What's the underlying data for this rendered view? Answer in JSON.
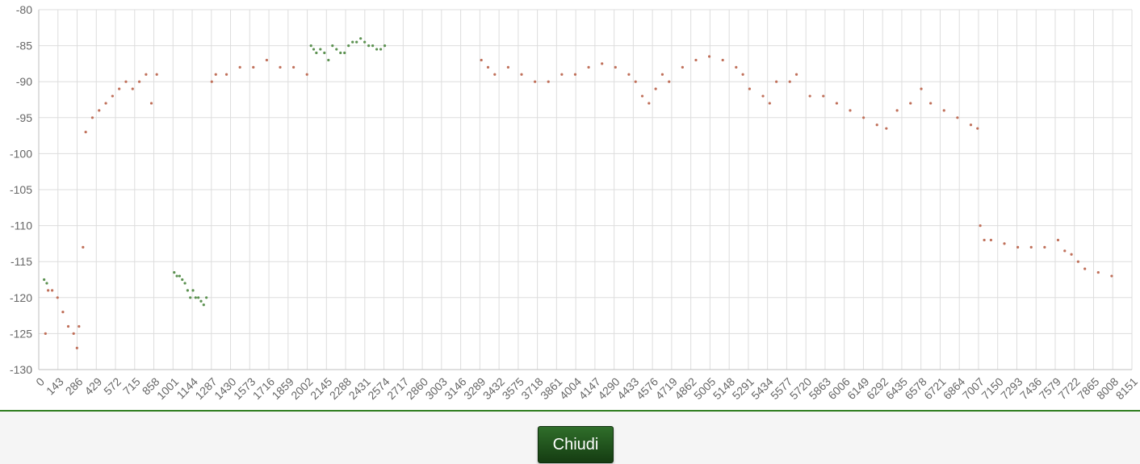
{
  "chart_data": {
    "type": "scatter",
    "title": "",
    "xlabel": "",
    "ylabel": "",
    "xlim": [
      0,
      8151
    ],
    "ylim": [
      -130,
      -80
    ],
    "y_ticks": [
      -80,
      -85,
      -90,
      -95,
      -100,
      -105,
      -110,
      -115,
      -120,
      -125,
      -130
    ],
    "x_ticks": [
      0,
      143,
      286,
      429,
      572,
      715,
      858,
      1001,
      1144,
      1287,
      1430,
      1573,
      1716,
      1859,
      2002,
      2145,
      2288,
      2431,
      2574,
      2717,
      2860,
      3003,
      3146,
      3289,
      3432,
      3575,
      3718,
      3861,
      4004,
      4147,
      4290,
      4433,
      4576,
      4719,
      4862,
      5005,
      5148,
      5291,
      5434,
      5577,
      5720,
      5863,
      6006,
      6149,
      6292,
      6435,
      6578,
      6721,
      6864,
      7007,
      7150,
      7293,
      7436,
      7579,
      7722,
      7865,
      8008,
      8151
    ],
    "grid": true,
    "legend": "none",
    "series": [
      {
        "color": "#c0705a",
        "x": [
          50,
          70,
          100,
          140,
          180,
          220,
          260,
          285,
          300,
          330,
          350,
          400,
          450,
          500,
          550,
          600,
          650,
          700,
          750,
          800,
          840,
          880,
          1290,
          1320,
          1400,
          1500,
          1600,
          1700,
          1800,
          1900,
          2000,
          3300,
          3350,
          3400,
          3500,
          3600,
          3700,
          3800,
          3900,
          4000,
          4100,
          4200,
          4300,
          4400,
          4450,
          4500,
          4550,
          4600,
          4650,
          4700,
          4800,
          4900,
          5000,
          5100,
          5200,
          5250,
          5300,
          5400,
          5450,
          5500,
          5600,
          5650,
          5750,
          5850,
          5950,
          6050,
          6150,
          6250,
          6320,
          6400,
          6500,
          6580,
          6650,
          6750,
          6850,
          6950,
          7000,
          7020,
          7050,
          7100,
          7200,
          7300,
          7400,
          7500,
          7600,
          7650,
          7700,
          7750,
          7800,
          7900,
          8000
        ],
        "y": [
          -125,
          -119,
          -119,
          -120,
          -122,
          -124,
          -125,
          -127,
          -124,
          -113,
          -97,
          -95,
          -94,
          -93,
          -92,
          -91,
          -90,
          -91,
          -90,
          -89,
          -93,
          -89,
          -90,
          -89,
          -89,
          -88,
          -88,
          -87,
          -88,
          -88,
          -89,
          -87,
          -88,
          -89,
          -88,
          -89,
          -90,
          -90,
          -89,
          -89,
          -88,
          -87.5,
          -88,
          -89,
          -90,
          -92,
          -93,
          -91,
          -89,
          -90,
          -88,
          -87,
          -86.5,
          -87,
          -88,
          -89,
          -91,
          -92,
          -93,
          -90,
          -90,
          -89,
          -92,
          -92,
          -93,
          -94,
          -95,
          -96,
          -96.5,
          -94,
          -93,
          -91,
          -93,
          -94,
          -95,
          -96,
          -96.5,
          -110,
          -112,
          -112,
          -112.5,
          -113,
          -113,
          -113,
          -112,
          -113.5,
          -114,
          -115,
          -116,
          -116.5,
          -117
        ]
      },
      {
        "color": "#5b9150",
        "x": [
          40,
          60,
          1010,
          1030,
          1050,
          1070,
          1090,
          1110,
          1130,
          1150,
          1170,
          1190,
          1210,
          1230,
          1250,
          2030,
          2050,
          2070,
          2100,
          2130,
          2160,
          2190,
          2220,
          2250,
          2280,
          2310,
          2340,
          2370,
          2400,
          2430,
          2460,
          2490,
          2520,
          2550,
          2580
        ],
        "y": [
          -117.5,
          -118,
          -116.5,
          -117,
          -117,
          -117.5,
          -118,
          -119,
          -120,
          -119,
          -120,
          -120,
          -120.5,
          -121,
          -120,
          -85,
          -85.5,
          -86,
          -85.5,
          -86,
          -87,
          -85,
          -85.5,
          -86,
          -86,
          -85,
          -84.5,
          -84.5,
          -84,
          -84.5,
          -85,
          -85,
          -85.5,
          -85.5,
          -85
        ]
      }
    ]
  },
  "footer": {
    "close_label": "Chiudi"
  }
}
